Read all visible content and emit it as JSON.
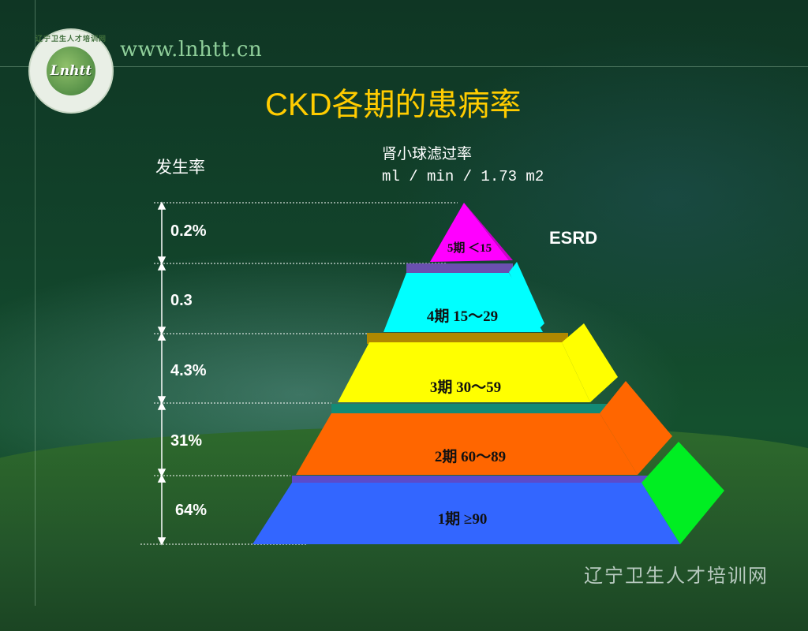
{
  "site_url": "www.lnhtt.cn",
  "logo": {
    "initials": "Lnhtt",
    "ring_text": "辽宁卫生人才培训网"
  },
  "title": "CKD各期的患病率",
  "incidence_label": "发生率",
  "gfr_label": {
    "line1": "肾小球滤过率",
    "line2": "ml / min / 1.73 m2"
  },
  "percentages": [
    "0.2%",
    "0.3",
    "4.3%",
    "31%",
    "64%"
  ],
  "stages": [
    {
      "label": "5期 ＜15",
      "color": "#ff00ff"
    },
    {
      "label": "4期  15～29",
      "color": "#00ffff"
    },
    {
      "label": "3期    30～59",
      "color": "#ffff00"
    },
    {
      "label": "2期     60～89",
      "color": "#ff6600"
    },
    {
      "label": "1期    ≥90",
      "color": "#3366ff"
    }
  ],
  "esrd_label": "ESRD",
  "footer": "辽宁卫生人才培训网"
}
